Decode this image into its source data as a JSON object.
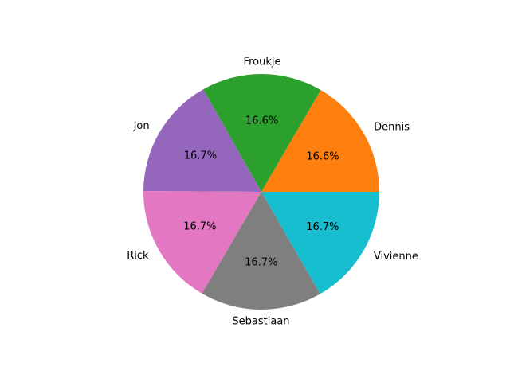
{
  "chart_data": {
    "type": "pie",
    "title": "",
    "start_angle_deg": 0,
    "direction": "counterclockwise",
    "slices": [
      {
        "label": "Dennis",
        "value": 16.6,
        "pct_label": "16.6%",
        "color": "#ff7f0e"
      },
      {
        "label": "Froukje",
        "value": 16.6,
        "pct_label": "16.6%",
        "color": "#2ca02c"
      },
      {
        "label": "Jon",
        "value": 16.7,
        "pct_label": "16.7%",
        "color": "#9467bd"
      },
      {
        "label": "Rick",
        "value": 16.7,
        "pct_label": "16.7%",
        "color": "#e377c2"
      },
      {
        "label": "Sebastiaan",
        "value": 16.7,
        "pct_label": "16.7%",
        "color": "#7f7f7f"
      },
      {
        "label": "Vivienne",
        "value": 16.7,
        "pct_label": "16.7%",
        "color": "#17becf"
      }
    ]
  }
}
